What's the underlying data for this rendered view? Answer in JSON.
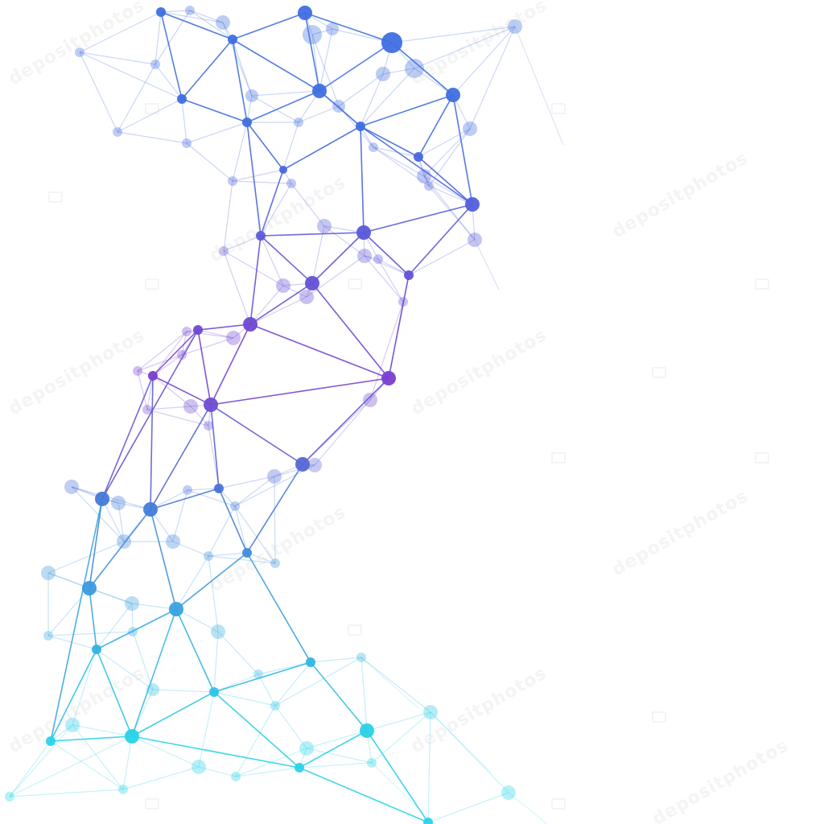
{
  "image": {
    "background_color": "#ffffff",
    "subject": "polygonal-network-mesh",
    "palette": {
      "top_blue": "#3f6fe0",
      "middle_purple": "#7a3fd0",
      "bottom_cyan": "#2ad4e8",
      "faint_edge_opacity": 0.35,
      "strong_edge_opacity": 0.9
    }
  },
  "watermark": {
    "text": "depositphotos",
    "icon": "camera-icon"
  }
}
